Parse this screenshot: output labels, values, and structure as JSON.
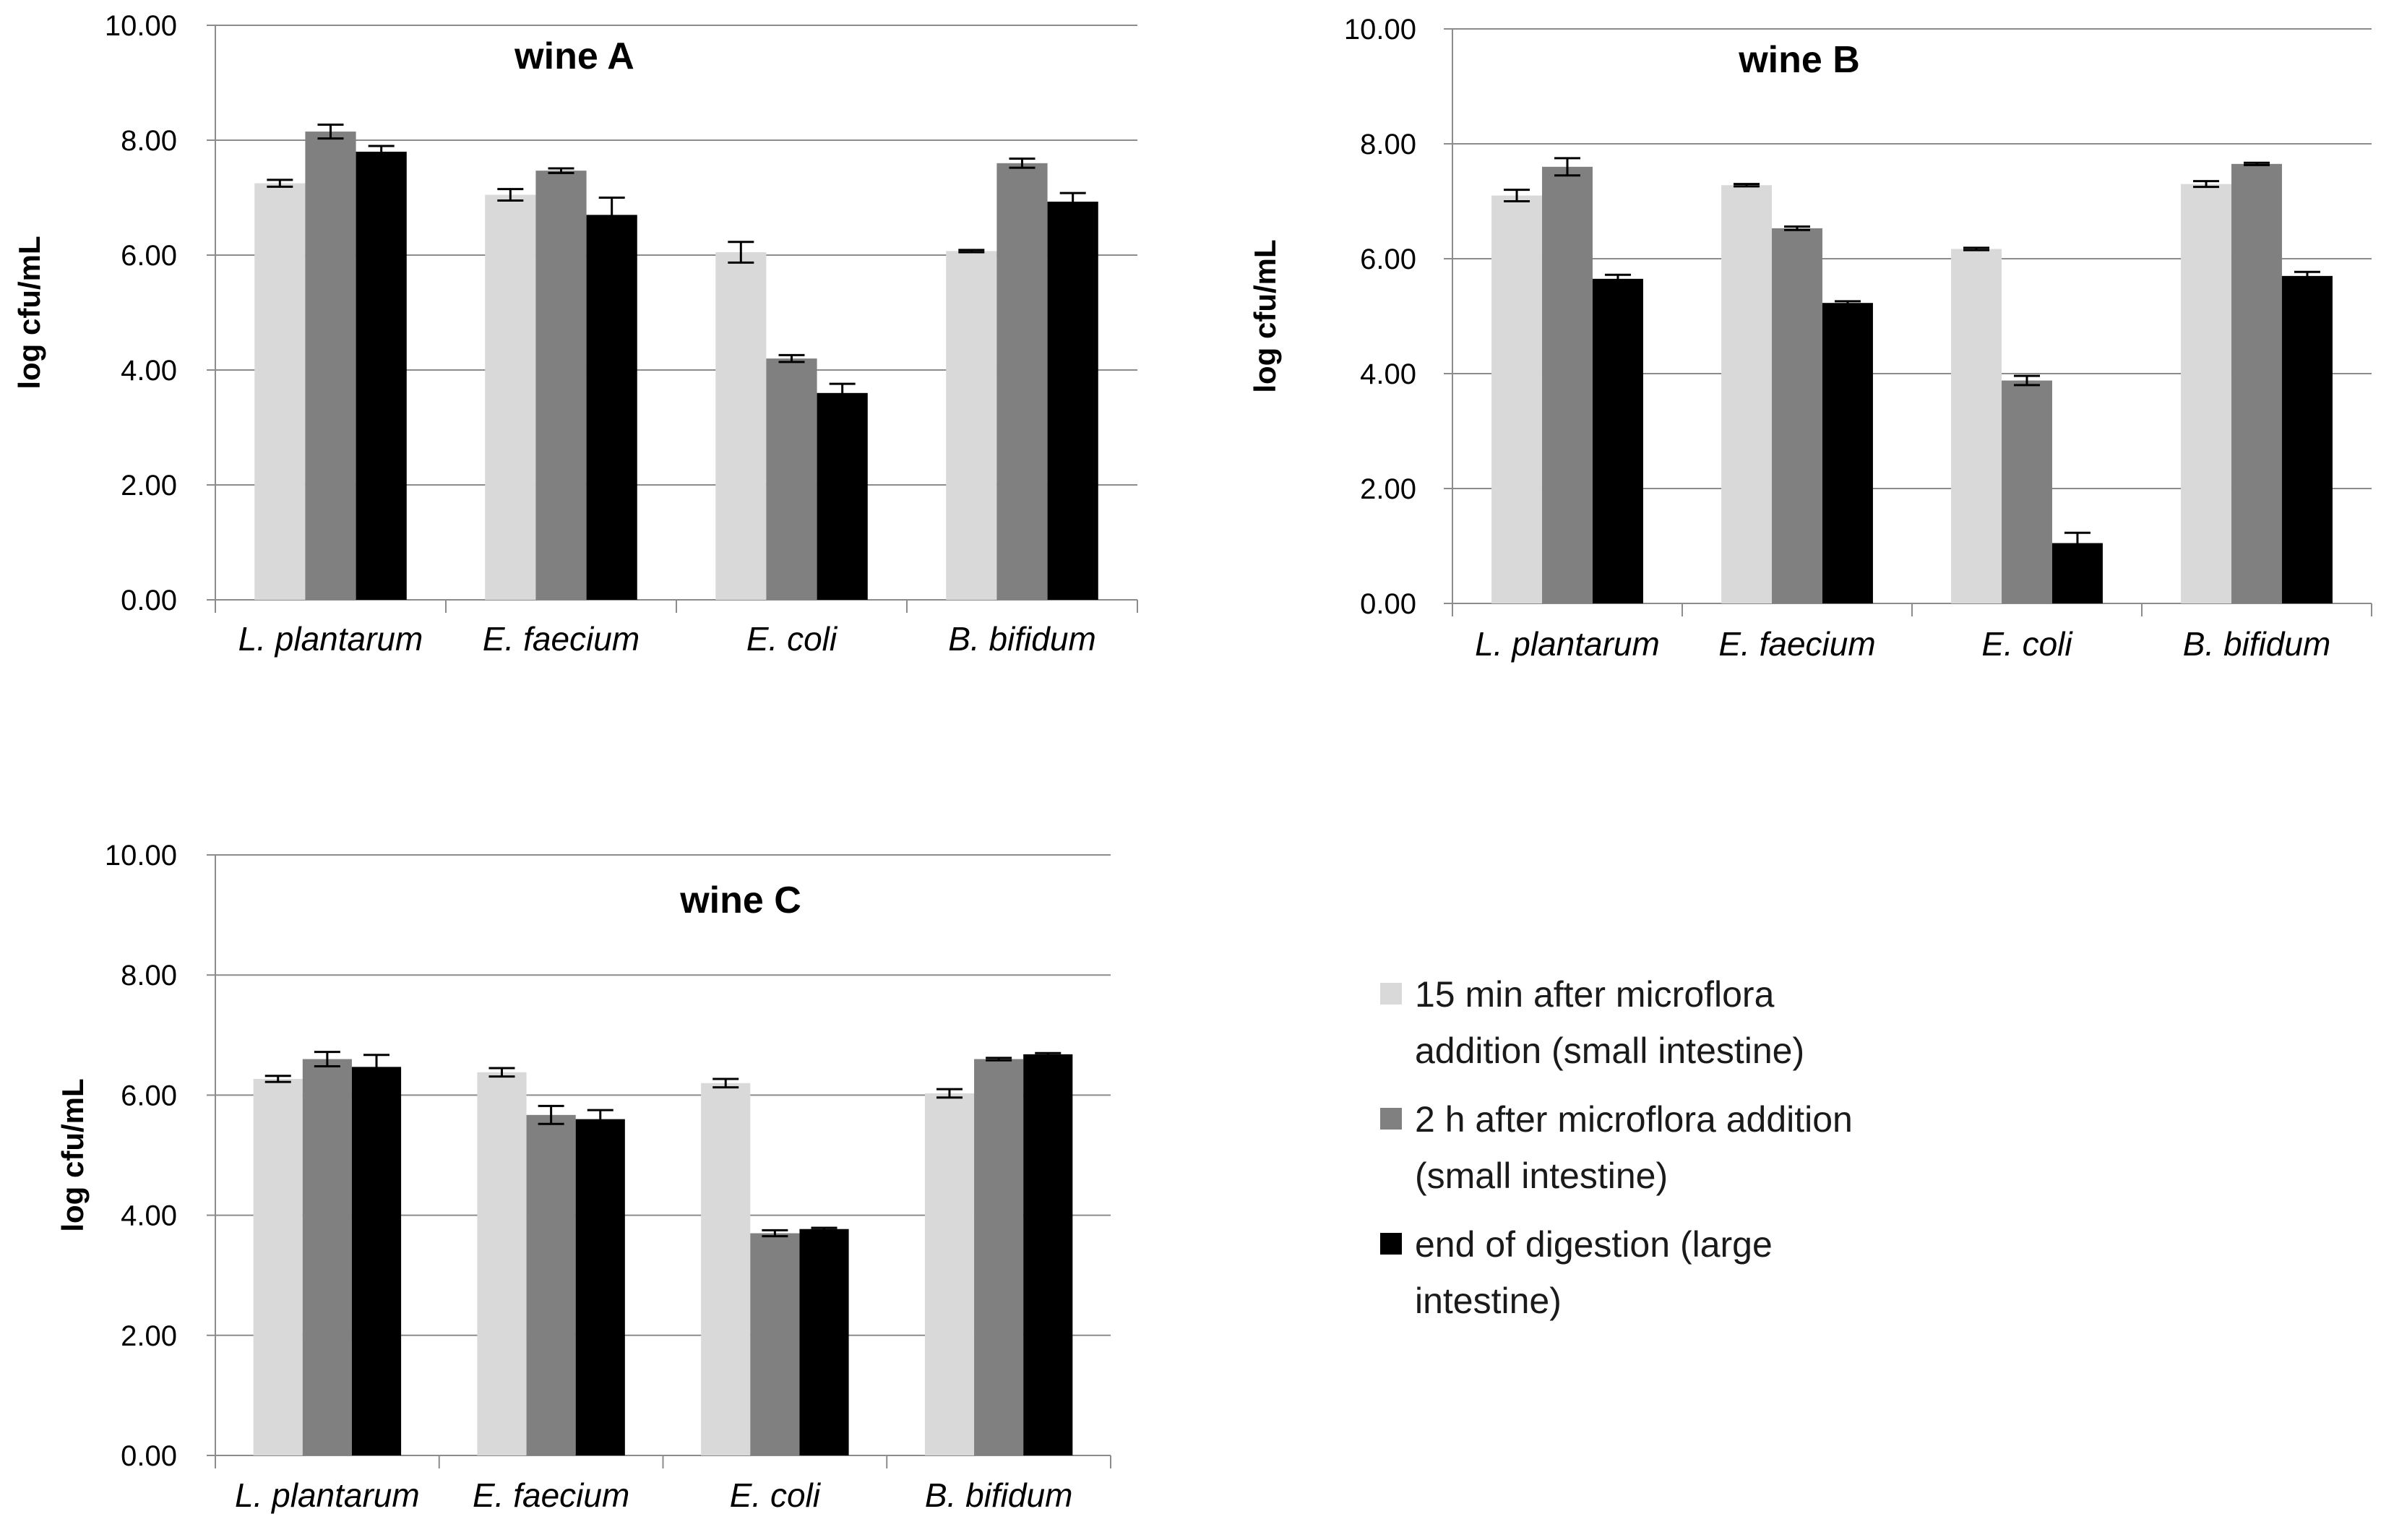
{
  "legend": [
    {
      "lines": [
        "15 min after microflora",
        "addition (small intestine)"
      ],
      "color": "#d9d9d9"
    },
    {
      "lines": [
        "2 h after microflora addition",
        "(small intestine)"
      ],
      "color": "#808080"
    },
    {
      "lines": [
        "end of digestion (large",
        "intestine)"
      ],
      "color": "#000000"
    }
  ],
  "chart_data": [
    {
      "type": "bar",
      "title": "wine A",
      "ylabel": "log cfu/mL",
      "ylim": [
        0,
        10
      ],
      "yticks": [
        "0.00",
        "2.00",
        "4.00",
        "6.00",
        "8.00",
        "10.00"
      ],
      "categories": [
        "L. plantarum",
        "E. faecium",
        "E. coli",
        "B. bifidum"
      ],
      "series": [
        {
          "values": [
            7.25,
            7.05,
            6.05,
            6.07
          ],
          "errors": [
            0.06,
            0.1,
            0.18,
            0.02
          ]
        },
        {
          "values": [
            8.15,
            7.47,
            4.2,
            7.6
          ],
          "errors": [
            0.12,
            0.04,
            0.06,
            0.08
          ]
        },
        {
          "values": [
            7.8,
            6.7,
            3.6,
            6.93
          ],
          "errors": [
            0.1,
            0.3,
            0.16,
            0.15
          ]
        }
      ]
    },
    {
      "type": "bar",
      "title": "wine B",
      "ylabel": "log cfu/mL",
      "ylim": [
        0,
        10
      ],
      "yticks": [
        "0.00",
        "2.00",
        "4.00",
        "6.00",
        "8.00",
        "10.00"
      ],
      "categories": [
        "L. plantarum",
        "E. faecium",
        "E. coli",
        "B. bifidum"
      ],
      "series": [
        {
          "values": [
            7.1,
            7.28,
            6.17,
            7.3
          ],
          "errors": [
            0.1,
            0.02,
            0.02,
            0.05
          ]
        },
        {
          "values": [
            7.6,
            6.53,
            3.88,
            7.65
          ],
          "errors": [
            0.15,
            0.03,
            0.08,
            0.02
          ]
        },
        {
          "values": [
            5.65,
            5.23,
            1.05,
            5.7
          ],
          "errors": [
            0.07,
            0.03,
            0.18,
            0.07
          ]
        }
      ]
    },
    {
      "type": "bar",
      "title": "wine C",
      "ylabel": "log cfu/mL",
      "ylim": [
        0,
        10
      ],
      "yticks": [
        "0.00",
        "2.00",
        "4.00",
        "6.00",
        "8.00",
        "10.00"
      ],
      "categories": [
        "L. plantarum",
        "E. faecium",
        "E. coli",
        "B. bifidum"
      ],
      "series": [
        {
          "values": [
            6.27,
            6.38,
            6.2,
            6.03
          ],
          "errors": [
            0.05,
            0.07,
            0.07,
            0.07
          ]
        },
        {
          "values": [
            6.6,
            5.67,
            3.7,
            6.6
          ],
          "errors": [
            0.12,
            0.15,
            0.05,
            0.02
          ]
        },
        {
          "values": [
            6.47,
            5.6,
            3.77,
            6.68
          ],
          "errors": [
            0.2,
            0.15,
            0.02,
            0.02
          ]
        }
      ]
    }
  ]
}
